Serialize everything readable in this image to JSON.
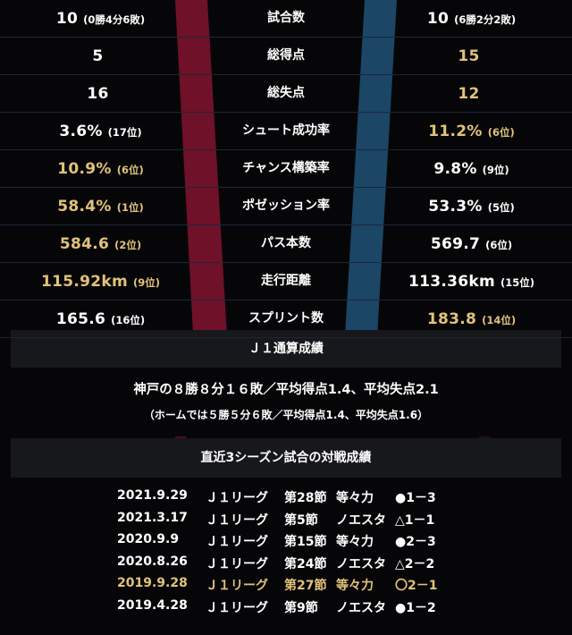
{
  "stats": [
    {
      "left_value": "10",
      "left_note": "(0勝4分6敗)",
      "left_gold": false,
      "label": "試合数",
      "right_value": "10",
      "right_note": "(6勝2分2敗)",
      "right_gold": false
    },
    {
      "left_value": "5",
      "left_note": "",
      "left_gold": false,
      "label": "総得点",
      "right_value": "15",
      "right_note": "",
      "right_gold": true
    },
    {
      "left_value": "16",
      "left_note": "",
      "left_gold": false,
      "label": "総失点",
      "right_value": "12",
      "right_note": "",
      "right_gold": true
    },
    {
      "left_value": "3.6%",
      "left_note": "(17位)",
      "left_gold": false,
      "label": "シュート成功率",
      "right_value": "11.2%",
      "right_note": "(6位)",
      "right_gold": true
    },
    {
      "left_value": "10.9%",
      "left_note": "(6位)",
      "left_gold": true,
      "label": "チャンス構築率",
      "right_value": "9.8%",
      "right_note": "(9位)",
      "right_gold": false
    },
    {
      "left_value": "58.4%",
      "left_note": "(1位)",
      "left_gold": true,
      "label": "ポゼッション率",
      "right_value": "53.3%",
      "right_note": "(5位)",
      "right_gold": false
    },
    {
      "left_value": "584.6",
      "left_note": "(2位)",
      "left_gold": true,
      "label": "パス本数",
      "right_value": "569.7",
      "right_note": "(6位)",
      "right_gold": false
    },
    {
      "left_value": "115.92km",
      "left_note": "(9位)",
      "left_gold": true,
      "label": "走行距離",
      "right_value": "113.36km",
      "right_note": "(15位)",
      "right_gold": false
    },
    {
      "left_value": "165.6",
      "left_note": "(16位)",
      "left_gold": false,
      "label": "スプリント数",
      "right_value": "183.8",
      "right_note": "(14位)",
      "right_gold": true
    }
  ],
  "j1_section": {
    "title": "Ｊ１通算成績",
    "summary": "神戸の８勝８分１６敗／平均得点1.4、平均失点2.1",
    "home_summary": "（ホームでは５勝５分６敗／平均得点1.4、平均失点1.6）"
  },
  "recent_section": {
    "title": "直近3シーズン試合の対戦成績",
    "matches": [
      {
        "date": "2021.9.29",
        "competition": "Ｊ１リーグ",
        "round": "第28節",
        "venue": "等々力",
        "result": "●1－3",
        "gold": false
      },
      {
        "date": "2021.3.17",
        "competition": "Ｊ１リーグ",
        "round": "第5節",
        "venue": "ノエスタ",
        "result": "△1－1",
        "gold": false
      },
      {
        "date": "2020.9.9",
        "competition": "Ｊ１リーグ",
        "round": "第15節",
        "venue": "等々力",
        "result": "●2－3",
        "gold": false
      },
      {
        "date": "2020.8.26",
        "competition": "Ｊ１リーグ",
        "round": "第24節",
        "venue": "ノエスタ",
        "result": "△2－2",
        "gold": false
      },
      {
        "date": "2019.9.28",
        "competition": "Ｊ１リーグ",
        "round": "第27節",
        "venue": "等々力",
        "result": "〇2－1",
        "gold": true
      },
      {
        "date": "2019.4.28",
        "competition": "Ｊ１リーグ",
        "round": "第9節",
        "venue": "ノエスタ",
        "result": "●1－2",
        "gold": false
      }
    ]
  },
  "colors": {
    "background": "#060608",
    "highlight": "#e2c27a",
    "left_team_stripe": "#7a1430",
    "right_team_stripe": "#1b4a6e"
  }
}
